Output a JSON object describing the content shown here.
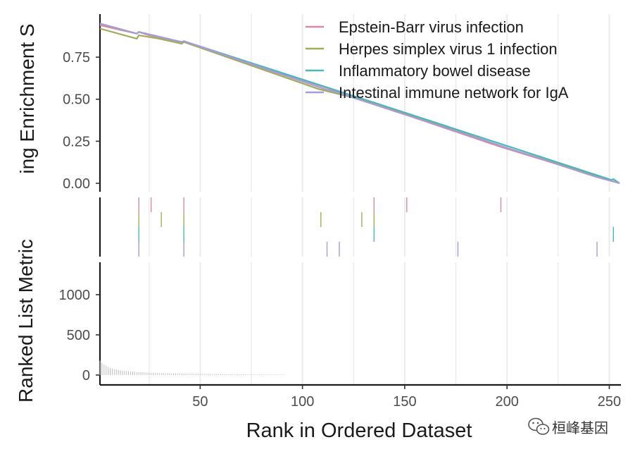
{
  "chart_data": {
    "type": "line",
    "xlabel": "Rank in Ordered Dataset",
    "x_ticks": [
      50,
      100,
      150,
      200,
      250
    ],
    "xlim": [
      1,
      255
    ],
    "panels": {
      "enrichment": {
        "ylabel": "Running Enrichment Score",
        "ylabel_visible": "ing Enrichment S",
        "ylim": [
          0,
          0.96
        ],
        "y_ticks": [
          "0.00",
          "0.25",
          "0.50",
          "0.75"
        ],
        "y_tick_values": [
          0,
          0.25,
          0.5,
          0.75
        ]
      },
      "ranked_metric": {
        "ylabel": "Ranked List Metric",
        "ylim": [
          0,
          1400
        ],
        "y_ticks": [
          "0",
          "500",
          "1000"
        ],
        "y_tick_values": [
          0,
          500,
          1000
        ]
      }
    },
    "series": [
      {
        "name": "Epstein-Barr virus infection",
        "color": "#D98A9D",
        "points": [
          [
            1,
            0.94
          ],
          [
            19,
            0.89
          ],
          [
            20,
            0.9
          ],
          [
            25,
            0.88
          ],
          [
            41,
            0.84
          ],
          [
            42,
            0.845
          ],
          [
            134,
            0.48
          ],
          [
            135,
            0.47
          ],
          [
            150,
            0.41
          ],
          [
            196,
            0.22
          ],
          [
            255,
            0
          ]
        ],
        "hits": [
          20,
          26,
          42,
          135,
          151,
          197
        ]
      },
      {
        "name": "Herpes simplex virus 1 infection",
        "color": "#A3AB5B",
        "points": [
          [
            1,
            0.92
          ],
          [
            19,
            0.86
          ],
          [
            20,
            0.88
          ],
          [
            30,
            0.86
          ],
          [
            41,
            0.83
          ],
          [
            42,
            0.84
          ],
          [
            108,
            0.56
          ],
          [
            128,
            0.5
          ],
          [
            135,
            0.48
          ],
          [
            200,
            0.21
          ],
          [
            255,
            0
          ]
        ],
        "hits": [
          20,
          31,
          42,
          109,
          129,
          135
        ]
      },
      {
        "name": "Inflammatory bowel disease",
        "color": "#4BB7B8",
        "points": [
          [
            1,
            0.95
          ],
          [
            19,
            0.89
          ],
          [
            20,
            0.9
          ],
          [
            41,
            0.84
          ],
          [
            42,
            0.845
          ],
          [
            135,
            0.48
          ],
          [
            251,
            0.02
          ],
          [
            252,
            0.025
          ],
          [
            255,
            0
          ]
        ],
        "hits": [
          20,
          42,
          135,
          252
        ]
      },
      {
        "name": "Intestinal immune network for IgA",
        "color": "#A99BD6",
        "points": [
          [
            1,
            0.95
          ],
          [
            19,
            0.89
          ],
          [
            20,
            0.9
          ],
          [
            41,
            0.84
          ],
          [
            42,
            0.845
          ],
          [
            111,
            0.56
          ],
          [
            117,
            0.54
          ],
          [
            175,
            0.31
          ],
          [
            243,
            0.04
          ],
          [
            255,
            0
          ]
        ],
        "hits": [
          20,
          42,
          112,
          118,
          176,
          244
        ]
      }
    ],
    "ranked_list_metric": {
      "color": "#bfbfbf",
      "values": [
        180,
        150,
        130,
        115,
        100,
        90,
        82,
        75,
        70,
        65,
        60,
        56,
        52,
        49,
        46,
        44,
        42,
        40,
        38,
        36,
        35,
        34,
        32,
        31,
        30,
        29,
        28,
        27,
        26,
        25,
        24,
        24,
        23,
        22,
        22,
        21,
        21,
        20,
        20,
        19,
        19,
        18,
        18,
        17,
        17,
        17,
        16,
        16,
        15,
        15,
        15,
        14,
        14,
        14,
        13,
        13,
        13,
        12,
        12,
        12,
        12,
        11,
        11,
        11,
        11,
        10,
        10,
        10,
        10,
        10,
        9,
        9,
        9,
        9,
        9,
        8,
        8,
        8,
        8,
        8,
        8,
        7,
        7,
        7,
        7,
        7,
        7,
        7,
        6,
        6,
        6
      ]
    },
    "legend_position": "top-right",
    "grid": "vertical major"
  },
  "watermark": "桓峰基因"
}
